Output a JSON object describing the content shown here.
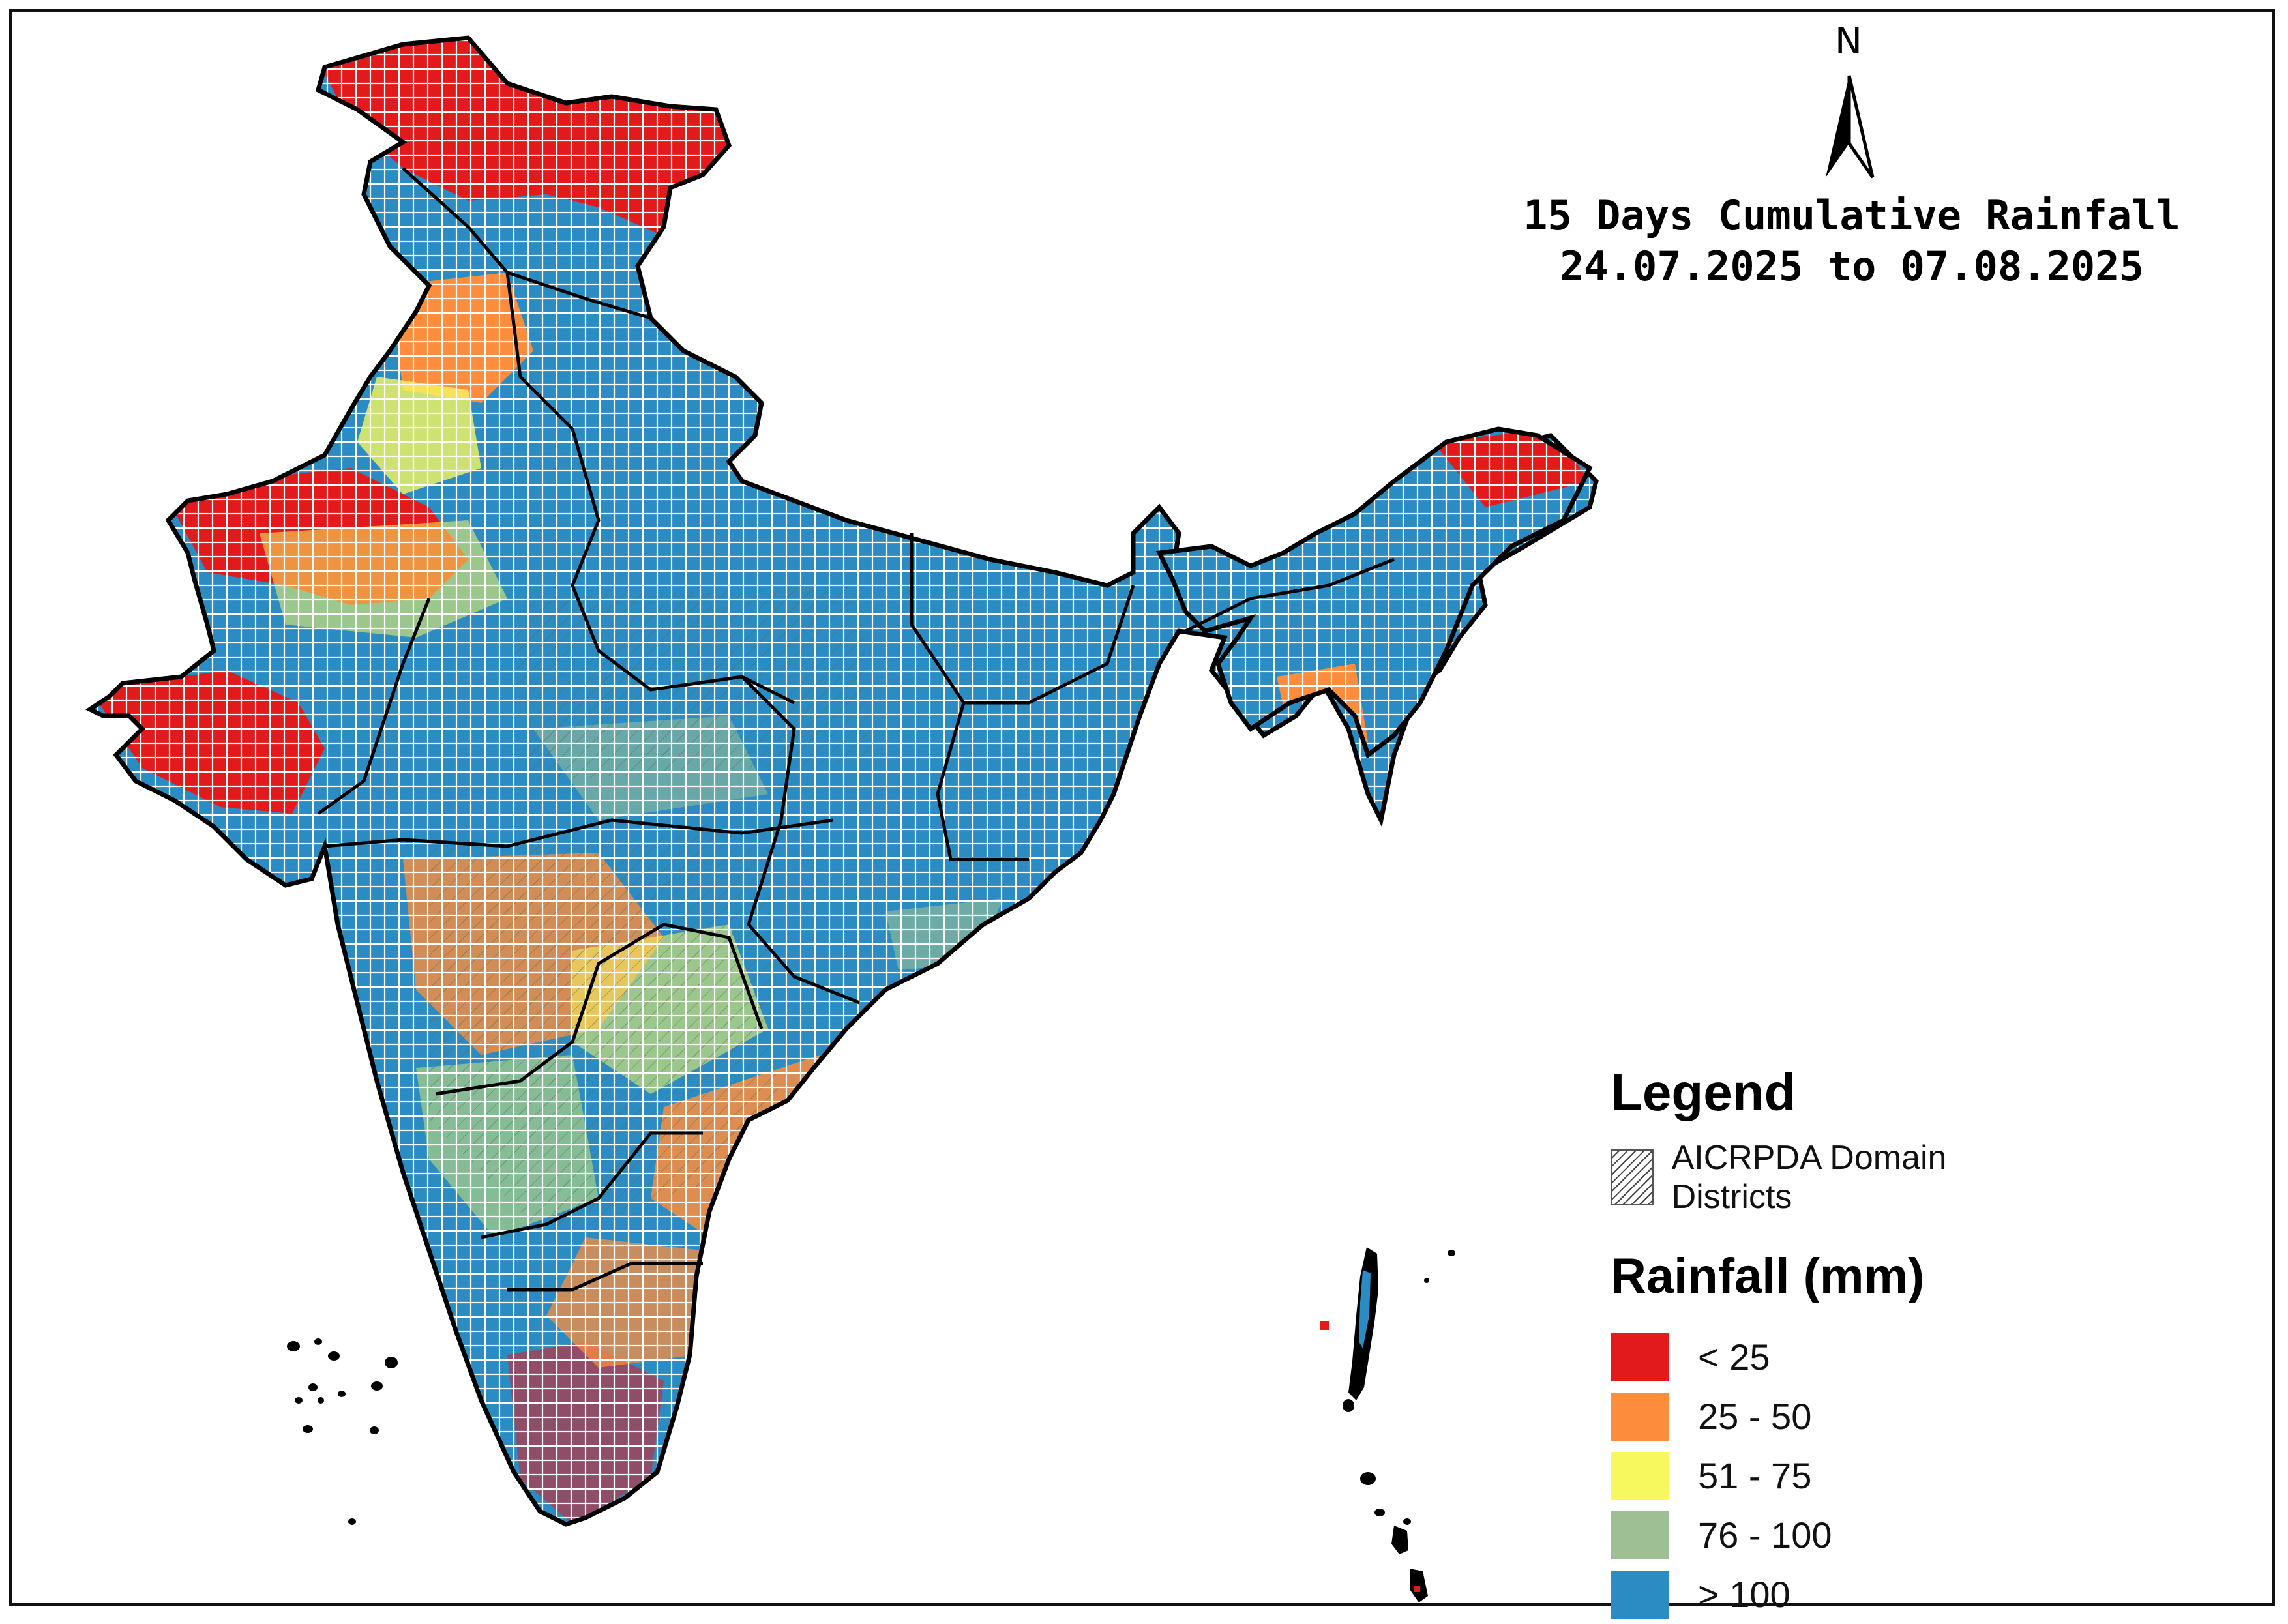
{
  "title": {
    "line1": "15 Days Cumulative Rainfall",
    "line2": "24.07.2025 to 07.08.2025"
  },
  "north_arrow": {
    "label": "N"
  },
  "legend": {
    "heading": "Legend",
    "hatch_label": "AICRPDA Domain Districts",
    "rainfall_heading": "Rainfall (mm)",
    "classes": [
      {
        "label": "< 25",
        "color": "#e31a1c"
      },
      {
        "label": "25 - 50",
        "color": "#fd8d3c"
      },
      {
        "label": "51 - 75",
        "color": "#f7f75e"
      },
      {
        "label": "76 - 100",
        "color": "#9dbf93"
      },
      {
        "label": "> 100",
        "color": "#2b8cc4"
      }
    ]
  }
}
